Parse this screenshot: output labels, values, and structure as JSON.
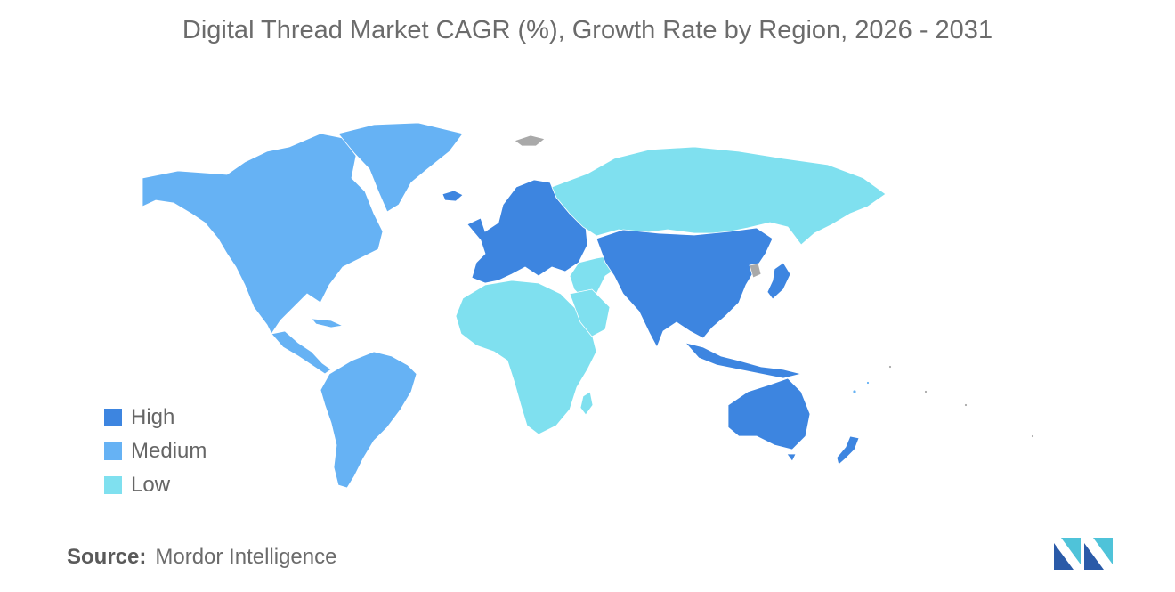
{
  "title": "Digital Thread Market CAGR (%), Growth Rate by Region, 2026 - 2031",
  "colors": {
    "high": "#3d85e0",
    "medium": "#66b2f4",
    "low": "#7fe0ef",
    "no_data": "#a9a9a9",
    "logo_dark": "#2a5aa8",
    "logo_light": "#4fc3d9"
  },
  "legend": [
    {
      "label": "High",
      "color": "#3d85e0"
    },
    {
      "label": "Medium",
      "color": "#66b2f4"
    },
    {
      "label": "Low",
      "color": "#7fe0ef"
    }
  ],
  "regions": {
    "north_america": "Medium",
    "south_america": "Medium",
    "greenland": "Medium",
    "europe": "High",
    "asia_pacific": "High",
    "australia_nz": "High",
    "russia": "Low",
    "middle_east_africa": "Low"
  },
  "source": {
    "label": "Source:",
    "value": "Mordor Intelligence"
  }
}
